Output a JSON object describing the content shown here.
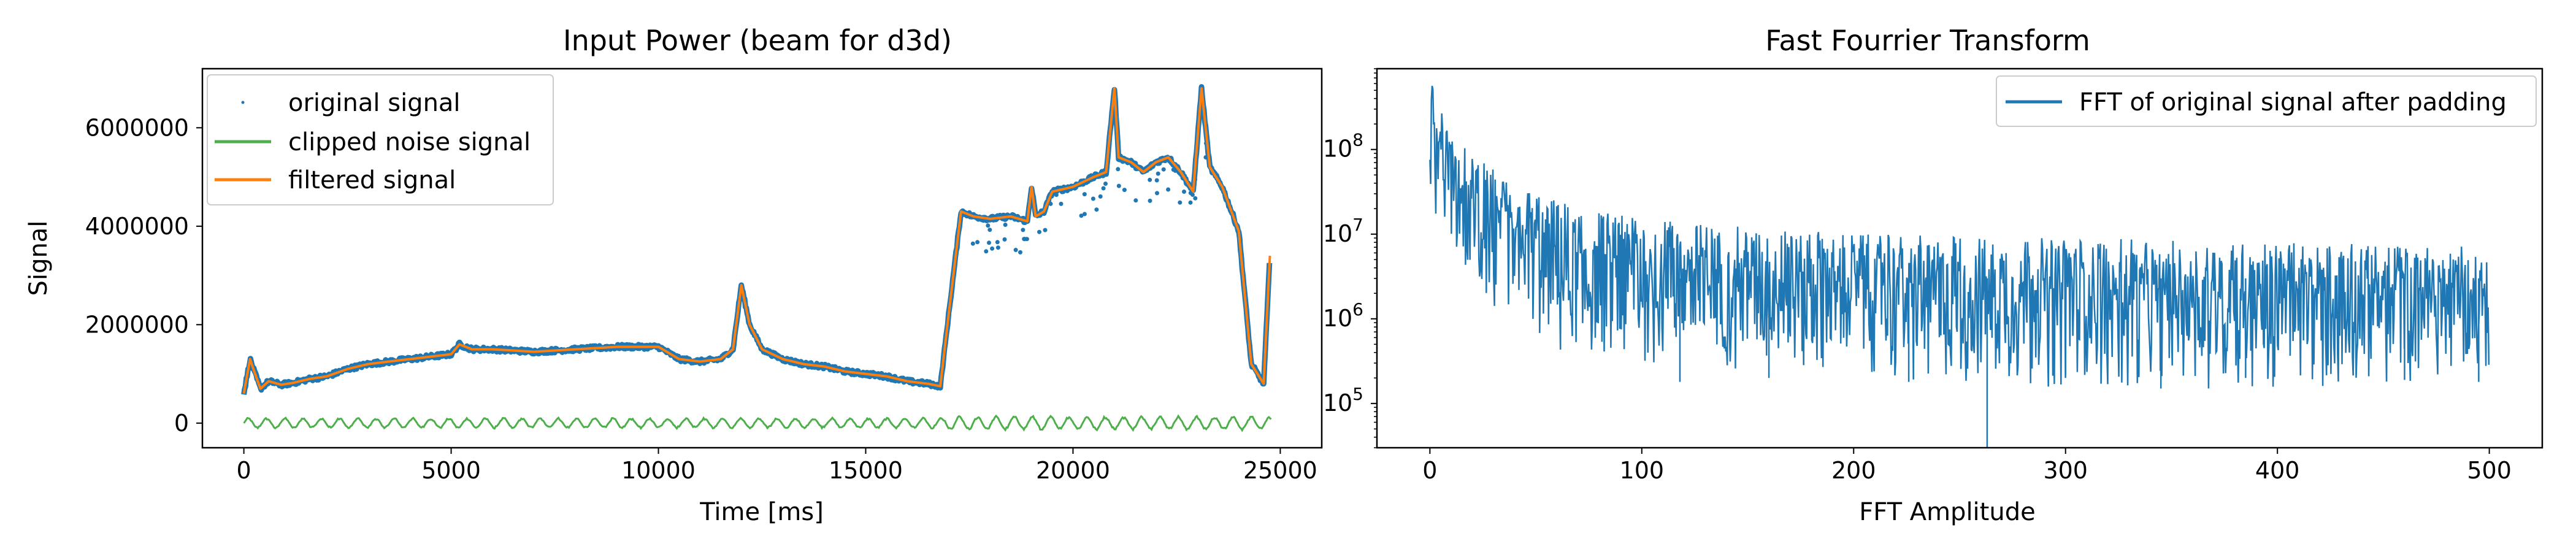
{
  "chart_data": [
    {
      "type": "line",
      "title": "Input Power (beam for d3d)",
      "xlabel": "Time [ms]",
      "ylabel": "Signal",
      "xlim": [
        -1000,
        26000
      ],
      "ylim": [
        -500000,
        7200000
      ],
      "xticks": [
        0,
        5000,
        10000,
        15000,
        20000,
        25000
      ],
      "xtick_labels": [
        "0",
        "5000",
        "10000",
        "15000",
        "20000",
        "25000"
      ],
      "yticks": [
        0,
        2000000,
        4000000,
        6000000
      ],
      "ytick_labels": [
        "0",
        "2000000",
        "4000000",
        "6000000"
      ],
      "grid": false,
      "legend_position": "top-left",
      "series": [
        {
          "name": "original signal",
          "style": "dots",
          "color": "#1f77b4",
          "x": [
            0,
            150,
            250,
            400,
            600,
            900,
            1200,
            1600,
            2000,
            2500,
            3000,
            3500,
            4000,
            4500,
            5000,
            5200,
            5500,
            6000,
            7000,
            8000,
            9000,
            10000,
            10500,
            11000,
            11500,
            11800,
            12000,
            12200,
            12500,
            13000,
            13500,
            14000,
            14500,
            15000,
            15500,
            16000,
            16500,
            16800,
            17000,
            17300,
            17600,
            18000,
            18500,
            18900,
            19000,
            19100,
            19300,
            19500,
            20000,
            20500,
            20800,
            21000,
            21100,
            21400,
            21700,
            22000,
            22300,
            22600,
            22900,
            23100,
            23300,
            23600,
            24000,
            24300,
            24600,
            24750
          ],
          "y": [
            600000,
            1300000,
            1050000,
            700000,
            850000,
            780000,
            820000,
            900000,
            950000,
            1100000,
            1200000,
            1250000,
            1300000,
            1350000,
            1400000,
            1600000,
            1500000,
            1500000,
            1450000,
            1500000,
            1550000,
            1550000,
            1300000,
            1250000,
            1300000,
            1500000,
            2800000,
            2000000,
            1500000,
            1300000,
            1200000,
            1150000,
            1050000,
            1000000,
            950000,
            850000,
            800000,
            750000,
            2200000,
            4300000,
            4200000,
            4150000,
            4200000,
            4100000,
            4800000,
            4200000,
            4300000,
            4700000,
            4800000,
            5000000,
            5100000,
            6800000,
            5400000,
            5300000,
            5100000,
            5300000,
            5400000,
            5100000,
            4700000,
            6800000,
            5200000,
            4800000,
            3900000,
            1200000,
            800000,
            3400000
          ]
        },
        {
          "name": "clipped noise signal",
          "style": "line",
          "color": "#4daf4a",
          "value_range": [
            -150000,
            150000
          ]
        },
        {
          "name": "filtered signal",
          "style": "line",
          "color": "#ff7f0e",
          "x": [
            0,
            150,
            250,
            400,
            600,
            900,
            1200,
            1600,
            2000,
            2500,
            3000,
            3500,
            4000,
            4500,
            5000,
            5200,
            5500,
            6000,
            7000,
            8000,
            9000,
            10000,
            10500,
            11000,
            11500,
            11800,
            12000,
            12200,
            12500,
            13000,
            13500,
            14000,
            14500,
            15000,
            15500,
            16000,
            16500,
            16800,
            17000,
            17300,
            17600,
            18000,
            18500,
            18900,
            19000,
            19100,
            19300,
            19500,
            20000,
            20500,
            20800,
            21000,
            21100,
            21400,
            21700,
            22000,
            22300,
            22600,
            22900,
            23100,
            23300,
            23600,
            24000,
            24300,
            24600,
            24750
          ],
          "y": [
            600000,
            1300000,
            1050000,
            700000,
            850000,
            780000,
            820000,
            900000,
            950000,
            1100000,
            1200000,
            1250000,
            1300000,
            1350000,
            1400000,
            1600000,
            1500000,
            1500000,
            1450000,
            1500000,
            1550000,
            1550000,
            1300000,
            1250000,
            1300000,
            1500000,
            2800000,
            2000000,
            1500000,
            1300000,
            1200000,
            1150000,
            1050000,
            1000000,
            950000,
            850000,
            800000,
            750000,
            2200000,
            4300000,
            4200000,
            4150000,
            4200000,
            4100000,
            4800000,
            4200000,
            4300000,
            4700000,
            4800000,
            5000000,
            5100000,
            6800000,
            5400000,
            5300000,
            5100000,
            5300000,
            5400000,
            5100000,
            4700000,
            6800000,
            5200000,
            4800000,
            3900000,
            1200000,
            800000,
            3400000
          ]
        }
      ]
    },
    {
      "type": "line",
      "title": "Fast Fourrier Transform",
      "xlabel": "FFT Amplitude",
      "ylabel": "",
      "xlim": [
        -25,
        525
      ],
      "ylim": [
        30000,
        900000000
      ],
      "yscale": "log",
      "xticks": [
        0,
        100,
        200,
        300,
        400,
        500
      ],
      "xtick_labels": [
        "0",
        "100",
        "200",
        "300",
        "400",
        "500"
      ],
      "yticks": [
        100000,
        1000000,
        10000000,
        100000000
      ],
      "ytick_base": "10",
      "ytick_exponents": [
        "5",
        "6",
        "7",
        "8"
      ],
      "grid": false,
      "legend_position": "top-right",
      "series": [
        {
          "name": "FFT of original signal after padding",
          "style": "line",
          "color": "#1f77b4",
          "envelope_x": [
            0,
            2,
            5,
            10,
            20,
            40,
            60,
            100,
            150,
            200,
            300,
            400,
            500
          ],
          "envelope_upper": [
            900000000,
            600000000,
            300000000,
            150000000,
            80000000,
            40000000,
            25000000,
            15000000,
            12000000,
            10000000,
            9000000,
            8000000,
            7000000
          ],
          "envelope_lower": [
            30000000,
            20000000,
            10000000,
            5000000,
            1500000,
            700000,
            400000,
            300000,
            250000,
            200000,
            150000,
            150000,
            200000
          ]
        }
      ]
    }
  ]
}
